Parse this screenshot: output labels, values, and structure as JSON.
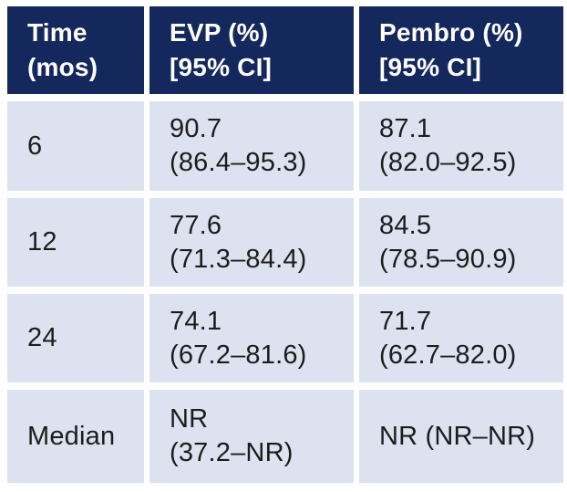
{
  "colors": {
    "header_bg": "#14285E",
    "header_text": "#FFFFFF",
    "cell_bg": "#DCE2EF",
    "cell_text": "#1C1C1C",
    "gap_bg": "#FFFFFF"
  },
  "header": {
    "time": {
      "line1": "Time",
      "line2": "(mos)"
    },
    "evp": {
      "line1": "EVP (%)",
      "line2": "[95% CI]"
    },
    "pembro": {
      "line1": "Pembro (%)",
      "line2": "[95% CI]"
    }
  },
  "rows": [
    {
      "time": "6",
      "evp_value": "90.7",
      "evp_ci": "(86.4–95.3)",
      "pembro_value": "87.1",
      "pembro_ci": "(82.0–92.5)"
    },
    {
      "time": "12",
      "evp_value": "77.6",
      "evp_ci": "(71.3–84.4)",
      "pembro_value": "84.5",
      "pembro_ci": "(78.5–90.9)"
    },
    {
      "time": "24",
      "evp_value": "74.1",
      "evp_ci": "(67.2–81.6)",
      "pembro_value": "71.7",
      "pembro_ci": "(62.7–82.0)"
    },
    {
      "time": "Median",
      "evp_value": "NR",
      "evp_ci": "(37.2–NR)",
      "pembro_value": "NR (NR–NR)"
    }
  ],
  "chart_data": {
    "type": "table",
    "columns": [
      "Time (mos)",
      "EVP (%) [95% CI]",
      "Pembro (%) [95% CI]"
    ],
    "rows": [
      [
        "6",
        "90.7 (86.4–95.3)",
        "87.1 (82.0–92.5)"
      ],
      [
        "12",
        "77.6 (71.3–84.4)",
        "84.5 (78.5–90.9)"
      ],
      [
        "24",
        "74.1 (67.2–81.6)",
        "71.7 (62.7–82.0)"
      ],
      [
        "Median",
        "NR (37.2–NR)",
        "NR (NR–NR)"
      ]
    ]
  }
}
